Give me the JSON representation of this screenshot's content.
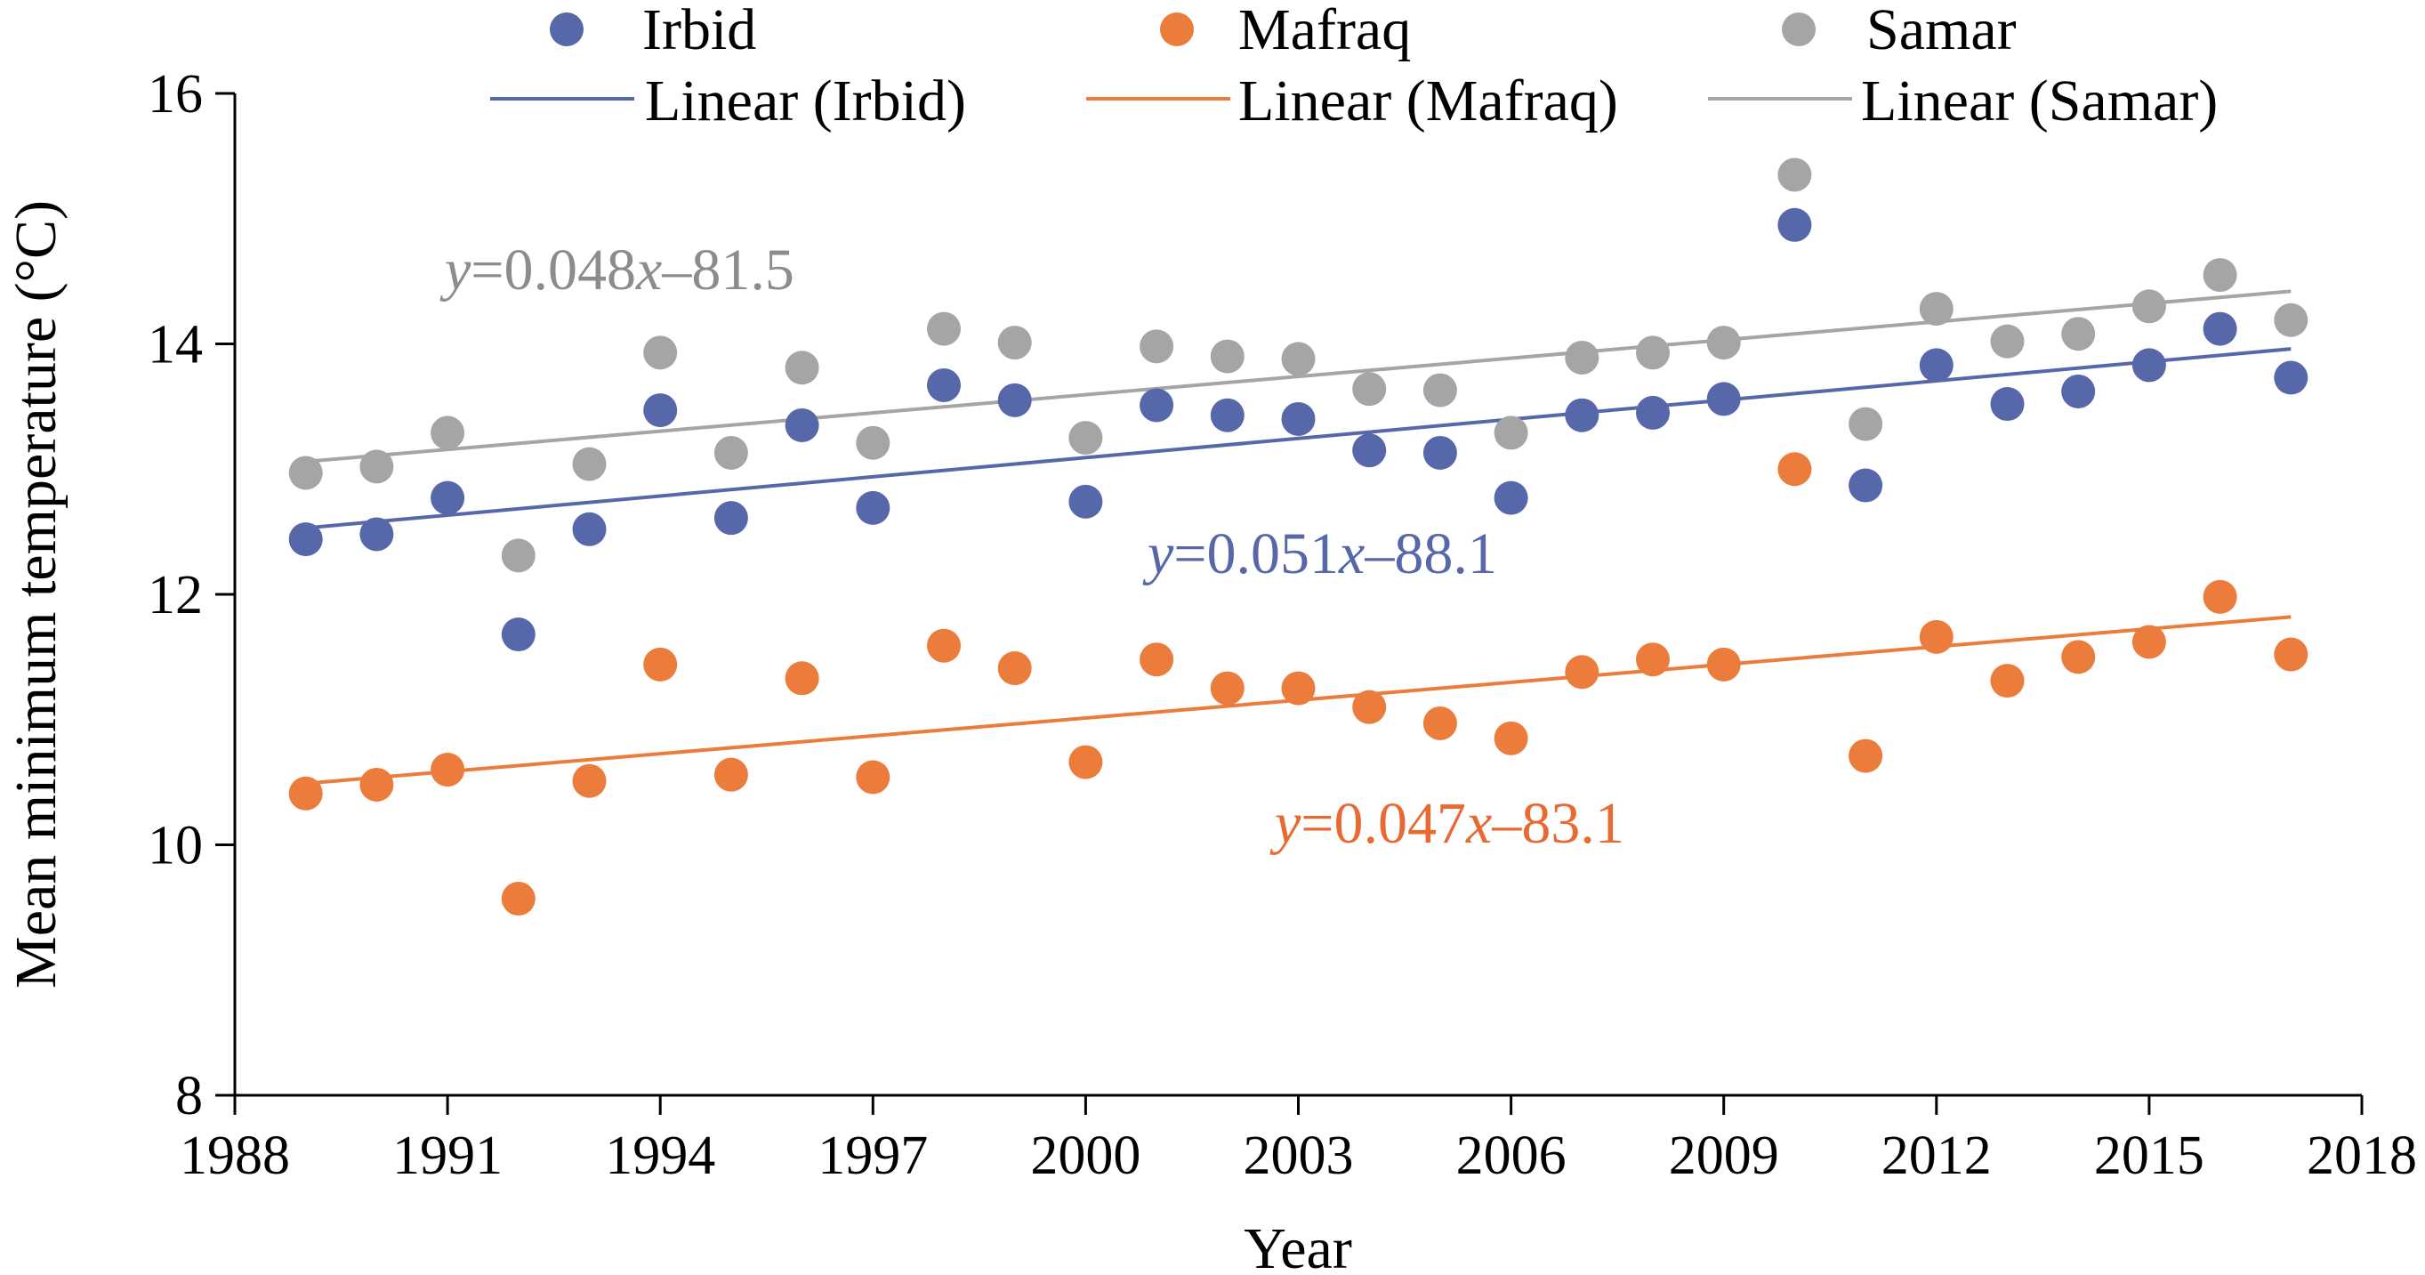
{
  "chart_data": {
    "type": "scatter",
    "xlabel": "Year",
    "ylabel": "Mean minimum temperature (°C)",
    "xlim": [
      1988,
      2018
    ],
    "ylim": [
      8,
      16
    ],
    "x_ticks": [
      1988,
      1991,
      1994,
      1997,
      2000,
      2003,
      2006,
      2009,
      2012,
      2015,
      2018
    ],
    "y_ticks": [
      8,
      10,
      12,
      14,
      16
    ],
    "legend_position": "top",
    "grid": false,
    "x": [
      1989,
      1990,
      1991,
      1992,
      1993,
      1994,
      1995,
      1996,
      1997,
      1998,
      1999,
      2000,
      2001,
      2002,
      2003,
      2004,
      2005,
      2006,
      2007,
      2008,
      2009,
      2010,
      2011,
      2012,
      2013,
      2014,
      2015,
      2016,
      2017
    ],
    "series": [
      {
        "name": "Irbid",
        "color": "#5667aa",
        "values": [
          12.44,
          12.48,
          12.77,
          11.68,
          12.52,
          13.47,
          12.61,
          13.35,
          12.69,
          13.67,
          13.55,
          12.74,
          13.51,
          13.43,
          13.4,
          13.15,
          13.13,
          12.77,
          13.43,
          13.45,
          13.56,
          14.95,
          12.87,
          13.83,
          13.52,
          13.62,
          13.83,
          14.12,
          13.73
        ],
        "trend_name": "Linear (Irbid)",
        "trend": [
          12.53,
          13.96
        ],
        "equation": {
          "y": "y",
          "mid": "=0.051",
          "x": "x",
          "rest": "–88.1"
        }
      },
      {
        "name": "Mafraq",
        "color": "#ec7c3c",
        "values": [
          10.41,
          10.48,
          10.6,
          9.57,
          10.51,
          11.44,
          10.56,
          11.33,
          10.54,
          11.59,
          11.41,
          10.66,
          11.48,
          11.25,
          11.25,
          11.1,
          10.97,
          10.85,
          11.38,
          11.48,
          11.44,
          13.0,
          10.71,
          11.66,
          11.31,
          11.5,
          11.62,
          11.98,
          11.52
        ],
        "trend_name": "Linear (Mafraq)",
        "trend": [
          10.49,
          11.82
        ],
        "equation": {
          "y": "y",
          "mid": "=0.047",
          "x": "x",
          "rest": "–83.1"
        }
      },
      {
        "name": "Samar",
        "color": "#a5a5a5",
        "values": [
          12.97,
          13.02,
          13.29,
          12.31,
          13.04,
          13.93,
          13.13,
          13.81,
          13.21,
          14.12,
          14.01,
          13.25,
          13.98,
          13.9,
          13.88,
          13.64,
          13.63,
          13.29,
          13.89,
          13.93,
          14.01,
          15.35,
          13.36,
          14.28,
          14.02,
          14.08,
          14.3,
          14.55,
          14.19
        ],
        "trend_name": "Linear (Samar)",
        "trend": [
          13.06,
          14.42
        ],
        "equation": {
          "y": "y",
          "mid": "=0.048",
          "x": "x",
          "rest": "–81.5"
        }
      }
    ]
  }
}
